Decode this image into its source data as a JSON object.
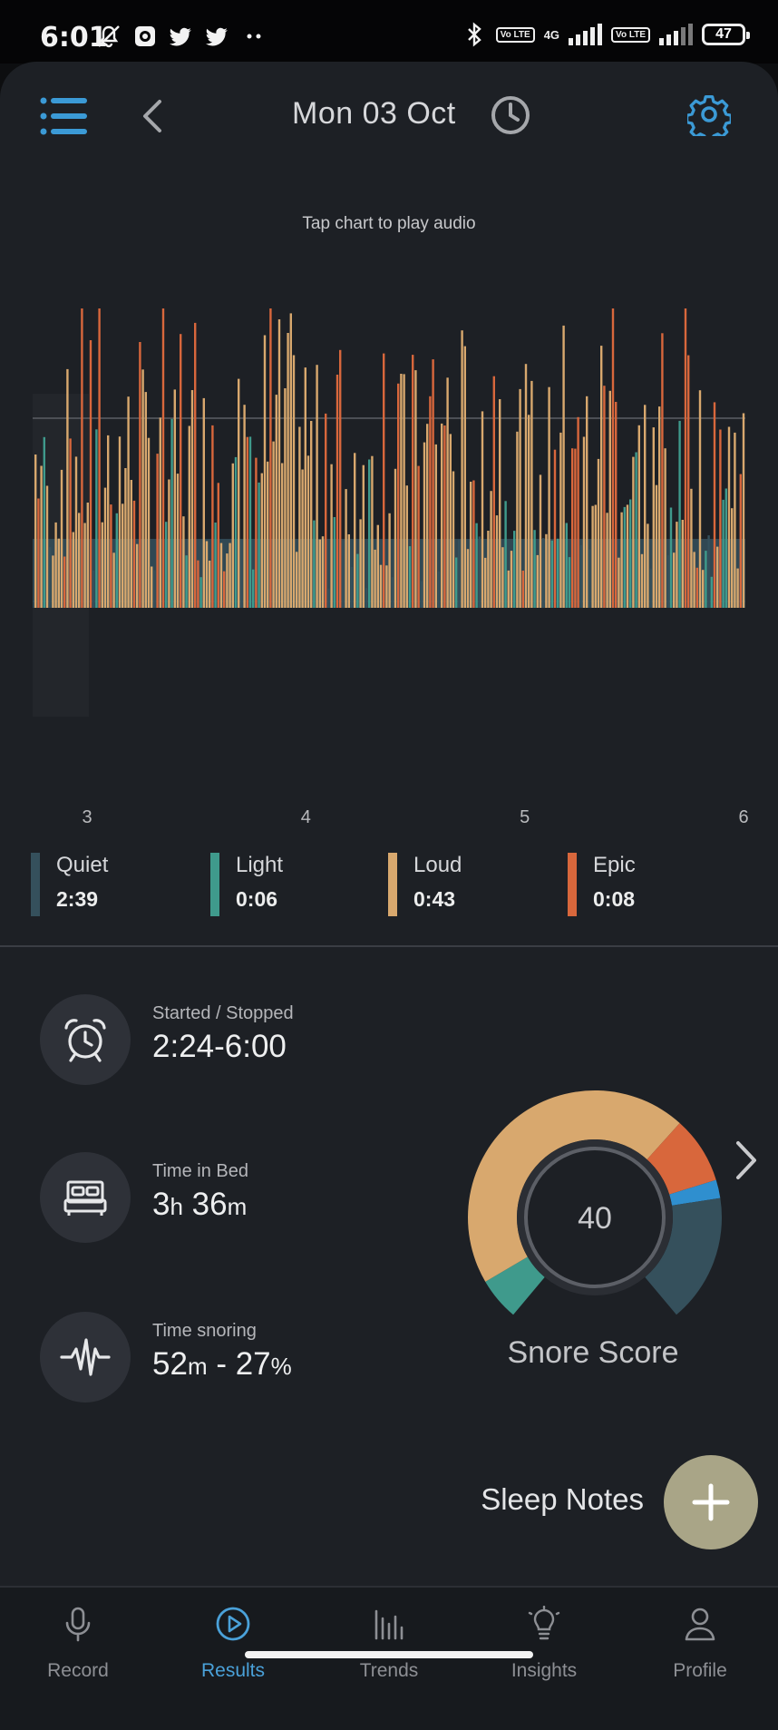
{
  "status_bar": {
    "time": "6:01",
    "network_1": "4G",
    "volte_1": "Vo LTE",
    "volte_2": "Vo LTE",
    "battery": "47"
  },
  "header": {
    "title": "Mon 03 Oct",
    "menu_icon": "list-menu-icon",
    "back_icon": "chevron-left-icon",
    "history_icon": "clock-icon",
    "settings_icon": "gear-icon"
  },
  "hint": "Tap chart to play audio",
  "chart_data": {
    "type": "bar",
    "x_ticks": [
      "3",
      "4",
      "5",
      "6"
    ],
    "grid": true,
    "legend_position": "bottom",
    "series": [
      {
        "name": "Quiet",
        "color": "#35505c"
      },
      {
        "name": "Light",
        "color": "#3f9a8c"
      },
      {
        "name": "Loud",
        "color": "#d8a86e"
      },
      {
        "name": "Epic",
        "color": "#d8673c"
      }
    ]
  },
  "legend": [
    {
      "name": "Quiet",
      "value": "2:39",
      "color": "#35505c"
    },
    {
      "name": "Light",
      "value": "0:06",
      "color": "#3f9a8c"
    },
    {
      "name": "Loud",
      "value": "0:43",
      "color": "#d8a86e"
    },
    {
      "name": "Epic",
      "value": "0:08",
      "color": "#d8673c"
    }
  ],
  "stats": {
    "started": {
      "label": "Started / Stopped",
      "value": "2:24-6:00"
    },
    "bed": {
      "label": "Time in Bed",
      "h": "3",
      "h_unit": "h",
      "m": "36",
      "m_unit": "m"
    },
    "snoring": {
      "label": "Time snoring",
      "m": "52",
      "m_unit": "m",
      "sep": " - ",
      "pct": "27",
      "pct_unit": "%"
    }
  },
  "score": {
    "value": "40",
    "label": "Snore Score",
    "segments": [
      {
        "name": "Light",
        "fraction": 0.07,
        "color": "#3f9a8c"
      },
      {
        "name": "Loud",
        "fraction": 0.58,
        "color": "#d8a86e"
      },
      {
        "name": "Epic",
        "fraction": 0.11,
        "color": "#d8673c"
      },
      {
        "name": "marker",
        "fraction": 0.03,
        "color": "#2f8fcf"
      },
      {
        "name": "Quiet",
        "fraction": 0.21,
        "color": "#35505c"
      }
    ]
  },
  "sleep_notes": {
    "label": "Sleep Notes",
    "icon": "plus-icon"
  },
  "nav": [
    {
      "label": "Record",
      "icon": "microphone-icon",
      "active": false
    },
    {
      "label": "Results",
      "icon": "play-circle-icon",
      "active": true
    },
    {
      "label": "Trends",
      "icon": "bars-icon",
      "active": false
    },
    {
      "label": "Insights",
      "icon": "lightbulb-icon",
      "active": false
    },
    {
      "label": "Profile",
      "icon": "person-icon",
      "active": false
    }
  ]
}
